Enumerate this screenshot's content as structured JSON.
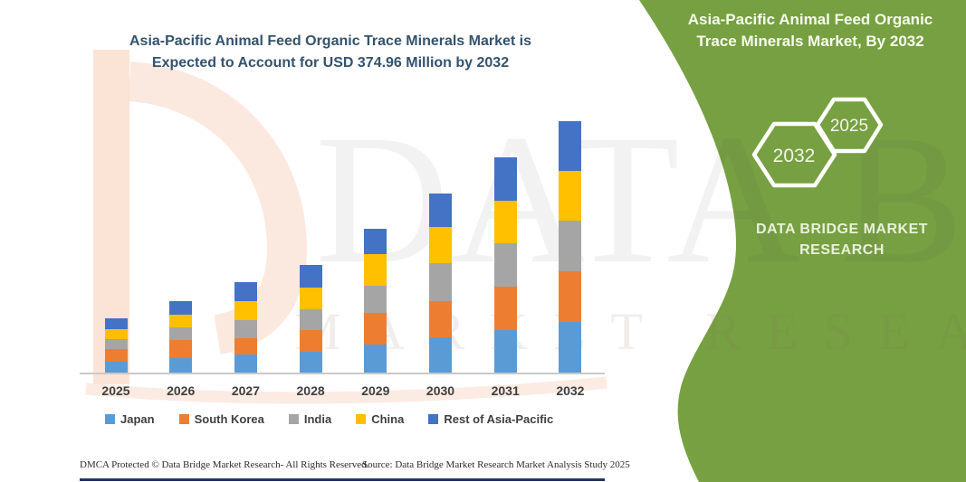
{
  "left_title": {
    "text": "Asia-Pacific Animal Feed Organic Trace Minerals Market is\nExpected to Account for USD 374.96 Million by 2032",
    "color": "#34536E"
  },
  "right_panel": {
    "background_color": "#76A041",
    "title": "Asia-Pacific Animal Feed Organic\nTrace Minerals Market, By 2032",
    "hexagons": [
      {
        "label": "2032"
      },
      {
        "label": "2025"
      }
    ],
    "brand": "DATA BRIDGE MARKET\nRESEARCH"
  },
  "watermark": {
    "primary": "DATA BRIDGE",
    "secondary": "MARKET RESEARCH"
  },
  "footer": {
    "dmca": "DMCA Protected © Data Bridge Market Research-  All Rights Reserved.",
    "source": "Source: Data Bridge Market Research  Market Analysis Study 2025"
  },
  "chart_data": {
    "type": "bar",
    "stacked": true,
    "unit": "USD Million",
    "title": "Asia-Pacific Animal Feed Organic Trace Minerals Market is Expected to Account for USD 374.96 Million by 2032",
    "xlabel": "",
    "ylabel": "",
    "ylim": [
      0,
      400
    ],
    "gridlines": false,
    "y_axis_visible": false,
    "legend_position": "bottom",
    "categories": [
      "2025",
      "2026",
      "2027",
      "2028",
      "2029",
      "2030",
      "2031",
      "2032"
    ],
    "series": [
      {
        "name": "Japan",
        "color": "#5B9BD5",
        "values": [
          16.6,
          22.0,
          27.0,
          31.4,
          41.8,
          52.6,
          63.8,
          76.0
        ]
      },
      {
        "name": "South Korea",
        "color": "#ED7D31",
        "values": [
          18.9,
          26.0,
          24.7,
          32.4,
          47.2,
          54.0,
          63.9,
          75.5
        ]
      },
      {
        "name": "India",
        "color": "#A5A5A5",
        "values": [
          14.8,
          18.9,
          27.0,
          30.6,
          40.5,
          57.1,
          65.2,
          75.1
        ]
      },
      {
        "name": "China",
        "color": "#FFC000",
        "values": [
          14.8,
          19.3,
          27.9,
          32.4,
          47.2,
          53.2,
          63.0,
          74.2
        ]
      },
      {
        "name": "Rest of Asia-Pacific",
        "color": "#4472C4",
        "values": [
          15.2,
          20.2,
          28.3,
          33.3,
          37.8,
          50.3,
          65.2,
          74.2
        ]
      }
    ],
    "estimated_totals": [
      80.3,
      106.4,
      134.9,
      160.1,
      214.5,
      267.2,
      321.1,
      375.0
    ],
    "annotations": [
      "2032 total stated in title: USD 374.96 Million"
    ]
  }
}
